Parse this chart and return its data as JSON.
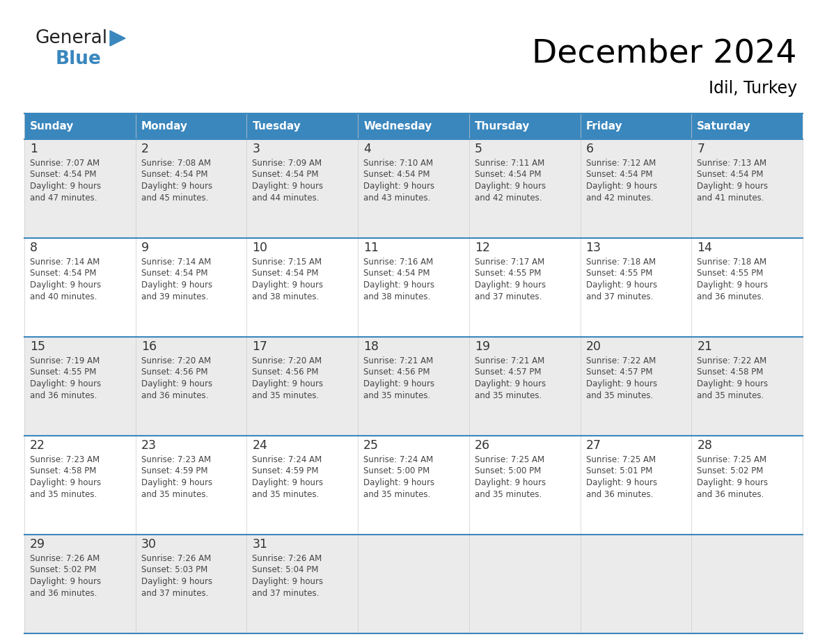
{
  "title": "December 2024",
  "subtitle": "Idil, Turkey",
  "header_bg": "#3a87be",
  "header_text_color": "#FFFFFF",
  "cell_bg_odd": "#ebebeb",
  "cell_bg_even": "#FFFFFF",
  "border_color": "#3a87be",
  "text_color": "#333333",
  "days_of_week": [
    "Sunday",
    "Monday",
    "Tuesday",
    "Wednesday",
    "Thursday",
    "Friday",
    "Saturday"
  ],
  "calendar_data": [
    [
      {
        "day": "1",
        "sunrise": "7:07 AM",
        "sunset": "4:54 PM",
        "daylight_line1": "Daylight: 9 hours",
        "daylight_line2": "and 47 minutes."
      },
      {
        "day": "2",
        "sunrise": "7:08 AM",
        "sunset": "4:54 PM",
        "daylight_line1": "Daylight: 9 hours",
        "daylight_line2": "and 45 minutes."
      },
      {
        "day": "3",
        "sunrise": "7:09 AM",
        "sunset": "4:54 PM",
        "daylight_line1": "Daylight: 9 hours",
        "daylight_line2": "and 44 minutes."
      },
      {
        "day": "4",
        "sunrise": "7:10 AM",
        "sunset": "4:54 PM",
        "daylight_line1": "Daylight: 9 hours",
        "daylight_line2": "and 43 minutes."
      },
      {
        "day": "5",
        "sunrise": "7:11 AM",
        "sunset": "4:54 PM",
        "daylight_line1": "Daylight: 9 hours",
        "daylight_line2": "and 42 minutes."
      },
      {
        "day": "6",
        "sunrise": "7:12 AM",
        "sunset": "4:54 PM",
        "daylight_line1": "Daylight: 9 hours",
        "daylight_line2": "and 42 minutes."
      },
      {
        "day": "7",
        "sunrise": "7:13 AM",
        "sunset": "4:54 PM",
        "daylight_line1": "Daylight: 9 hours",
        "daylight_line2": "and 41 minutes."
      }
    ],
    [
      {
        "day": "8",
        "sunrise": "7:14 AM",
        "sunset": "4:54 PM",
        "daylight_line1": "Daylight: 9 hours",
        "daylight_line2": "and 40 minutes."
      },
      {
        "day": "9",
        "sunrise": "7:14 AM",
        "sunset": "4:54 PM",
        "daylight_line1": "Daylight: 9 hours",
        "daylight_line2": "and 39 minutes."
      },
      {
        "day": "10",
        "sunrise": "7:15 AM",
        "sunset": "4:54 PM",
        "daylight_line1": "Daylight: 9 hours",
        "daylight_line2": "and 38 minutes."
      },
      {
        "day": "11",
        "sunrise": "7:16 AM",
        "sunset": "4:54 PM",
        "daylight_line1": "Daylight: 9 hours",
        "daylight_line2": "and 38 minutes."
      },
      {
        "day": "12",
        "sunrise": "7:17 AM",
        "sunset": "4:55 PM",
        "daylight_line1": "Daylight: 9 hours",
        "daylight_line2": "and 37 minutes."
      },
      {
        "day": "13",
        "sunrise": "7:18 AM",
        "sunset": "4:55 PM",
        "daylight_line1": "Daylight: 9 hours",
        "daylight_line2": "and 37 minutes."
      },
      {
        "day": "14",
        "sunrise": "7:18 AM",
        "sunset": "4:55 PM",
        "daylight_line1": "Daylight: 9 hours",
        "daylight_line2": "and 36 minutes."
      }
    ],
    [
      {
        "day": "15",
        "sunrise": "7:19 AM",
        "sunset": "4:55 PM",
        "daylight_line1": "Daylight: 9 hours",
        "daylight_line2": "and 36 minutes."
      },
      {
        "day": "16",
        "sunrise": "7:20 AM",
        "sunset": "4:56 PM",
        "daylight_line1": "Daylight: 9 hours",
        "daylight_line2": "and 36 minutes."
      },
      {
        "day": "17",
        "sunrise": "7:20 AM",
        "sunset": "4:56 PM",
        "daylight_line1": "Daylight: 9 hours",
        "daylight_line2": "and 35 minutes."
      },
      {
        "day": "18",
        "sunrise": "7:21 AM",
        "sunset": "4:56 PM",
        "daylight_line1": "Daylight: 9 hours",
        "daylight_line2": "and 35 minutes."
      },
      {
        "day": "19",
        "sunrise": "7:21 AM",
        "sunset": "4:57 PM",
        "daylight_line1": "Daylight: 9 hours",
        "daylight_line2": "and 35 minutes."
      },
      {
        "day": "20",
        "sunrise": "7:22 AM",
        "sunset": "4:57 PM",
        "daylight_line1": "Daylight: 9 hours",
        "daylight_line2": "and 35 minutes."
      },
      {
        "day": "21",
        "sunrise": "7:22 AM",
        "sunset": "4:58 PM",
        "daylight_line1": "Daylight: 9 hours",
        "daylight_line2": "and 35 minutes."
      }
    ],
    [
      {
        "day": "22",
        "sunrise": "7:23 AM",
        "sunset": "4:58 PM",
        "daylight_line1": "Daylight: 9 hours",
        "daylight_line2": "and 35 minutes."
      },
      {
        "day": "23",
        "sunrise": "7:23 AM",
        "sunset": "4:59 PM",
        "daylight_line1": "Daylight: 9 hours",
        "daylight_line2": "and 35 minutes."
      },
      {
        "day": "24",
        "sunrise": "7:24 AM",
        "sunset": "4:59 PM",
        "daylight_line1": "Daylight: 9 hours",
        "daylight_line2": "and 35 minutes."
      },
      {
        "day": "25",
        "sunrise": "7:24 AM",
        "sunset": "5:00 PM",
        "daylight_line1": "Daylight: 9 hours",
        "daylight_line2": "and 35 minutes."
      },
      {
        "day": "26",
        "sunrise": "7:25 AM",
        "sunset": "5:00 PM",
        "daylight_line1": "Daylight: 9 hours",
        "daylight_line2": "and 35 minutes."
      },
      {
        "day": "27",
        "sunrise": "7:25 AM",
        "sunset": "5:01 PM",
        "daylight_line1": "Daylight: 9 hours",
        "daylight_line2": "and 36 minutes."
      },
      {
        "day": "28",
        "sunrise": "7:25 AM",
        "sunset": "5:02 PM",
        "daylight_line1": "Daylight: 9 hours",
        "daylight_line2": "and 36 minutes."
      }
    ],
    [
      {
        "day": "29",
        "sunrise": "7:26 AM",
        "sunset": "5:02 PM",
        "daylight_line1": "Daylight: 9 hours",
        "daylight_line2": "and 36 minutes."
      },
      {
        "day": "30",
        "sunrise": "7:26 AM",
        "sunset": "5:03 PM",
        "daylight_line1": "Daylight: 9 hours",
        "daylight_line2": "and 37 minutes."
      },
      {
        "day": "31",
        "sunrise": "7:26 AM",
        "sunset": "5:04 PM",
        "daylight_line1": "Daylight: 9 hours",
        "daylight_line2": "and 37 minutes."
      },
      null,
      null,
      null,
      null
    ]
  ],
  "logo_general_color": "#222222",
  "logo_blue_color": "#3a87be",
  "logo_triangle_color": "#3a87be"
}
